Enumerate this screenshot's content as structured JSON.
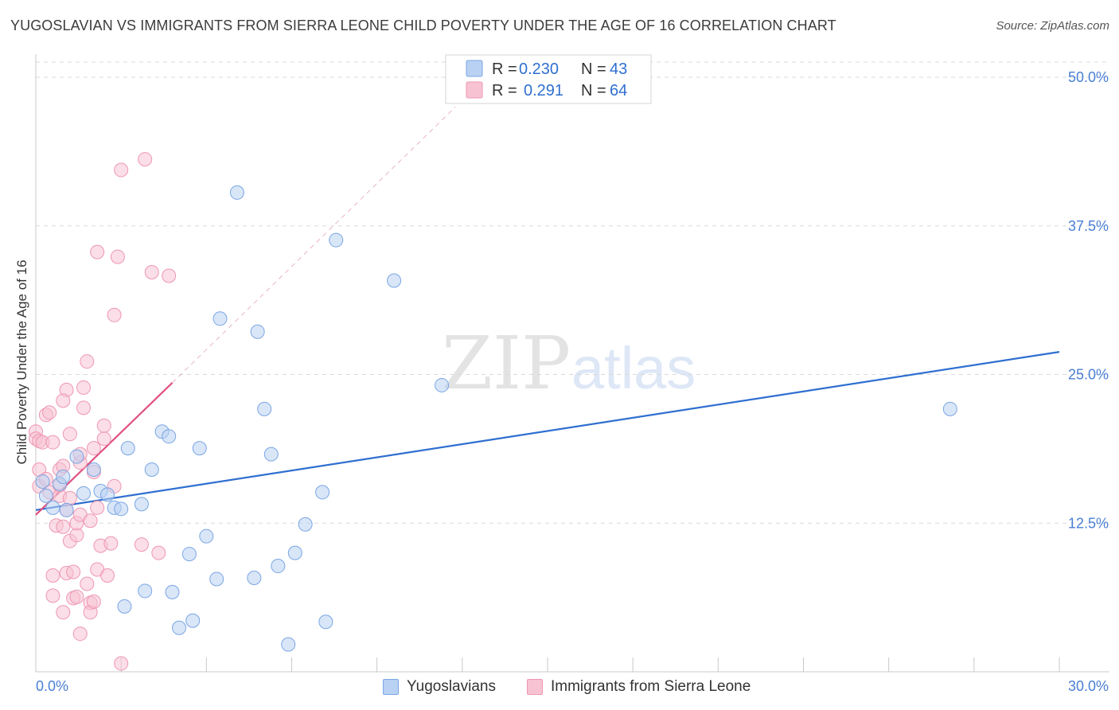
{
  "title": "YUGOSLAVIAN VS IMMIGRANTS FROM SIERRA LEONE CHILD POVERTY UNDER THE AGE OF 16 CORRELATION CHART",
  "source": "Source: ZipAtlas.com",
  "watermark": {
    "zip": "ZIP",
    "atlas": "atlas"
  },
  "colors": {
    "blue_fill": "#b9d1f3",
    "blue_stroke": "#7aa6e3",
    "blue_line": "#2f6fd0",
    "pink_fill": "#f7c3d3",
    "pink_stroke": "#ee97b3",
    "pink_line": "#e0507f",
    "axis_label": "#4a7fd4",
    "grid": "#d9d9d9"
  },
  "legend": [
    {
      "r_label": "R = ",
      "r_value": "0.230",
      "n_label": "N = ",
      "n_value": "43"
    },
    {
      "r_label": "R = ",
      "r_value": "0.291",
      "n_label": "N = ",
      "n_value": "64"
    }
  ],
  "bottom_legend": [
    "Yugoslavians",
    "Immigrants from Sierra Leone"
  ],
  "chart_data": {
    "type": "scatter",
    "title": "YUGOSLAVIAN VS IMMIGRANTS FROM SIERRA LEONE CHILD POVERTY UNDER THE AGE OF 16 CORRELATION CHART",
    "xlabel": "",
    "ylabel": "Child Poverty Under the Age of 16",
    "xlim": [
      0,
      30
    ],
    "ylim": [
      0,
      50
    ],
    "x_tick_labels": [
      "0.0%",
      "30.0%"
    ],
    "y_ticks": [
      12.5,
      25.0,
      37.5,
      50.0
    ],
    "y_tick_labels": [
      "12.5%",
      "25.0%",
      "37.5%",
      "50.0%"
    ],
    "series": [
      {
        "name": "Yugoslavians",
        "color": "#b9d1f3",
        "R": 0.23,
        "N": 43,
        "trend": {
          "x": [
            0,
            30
          ],
          "y": [
            13.6,
            26.9
          ],
          "extended": false
        },
        "points": [
          [
            0.2,
            16.0
          ],
          [
            0.3,
            14.8
          ],
          [
            0.5,
            13.8
          ],
          [
            0.7,
            15.8
          ],
          [
            0.8,
            16.4
          ],
          [
            0.9,
            13.6
          ],
          [
            1.2,
            18.1
          ],
          [
            1.4,
            15.0
          ],
          [
            1.7,
            17.0
          ],
          [
            1.9,
            15.2
          ],
          [
            2.1,
            14.9
          ],
          [
            2.3,
            13.8
          ],
          [
            2.5,
            13.7
          ],
          [
            2.6,
            5.5
          ],
          [
            2.7,
            18.8
          ],
          [
            3.1,
            14.1
          ],
          [
            3.2,
            6.8
          ],
          [
            3.4,
            17.0
          ],
          [
            3.7,
            20.2
          ],
          [
            3.9,
            19.8
          ],
          [
            4.0,
            6.7
          ],
          [
            4.2,
            3.7
          ],
          [
            4.5,
            9.9
          ],
          [
            4.6,
            4.3
          ],
          [
            4.8,
            18.8
          ],
          [
            5.0,
            11.4
          ],
          [
            5.3,
            7.8
          ],
          [
            5.4,
            29.7
          ],
          [
            5.9,
            40.3
          ],
          [
            6.4,
            7.9
          ],
          [
            6.5,
            28.6
          ],
          [
            6.7,
            22.1
          ],
          [
            6.9,
            18.3
          ],
          [
            7.1,
            8.9
          ],
          [
            7.4,
            2.3
          ],
          [
            7.6,
            10.0
          ],
          [
            7.9,
            12.4
          ],
          [
            8.4,
            15.1
          ],
          [
            8.5,
            4.2
          ],
          [
            8.8,
            36.3
          ],
          [
            10.5,
            32.9
          ],
          [
            11.9,
            24.1
          ],
          [
            26.8,
            22.1
          ]
        ]
      },
      {
        "name": "Immigrants from Sierra Leone",
        "color": "#f7c3d3",
        "R": 0.291,
        "N": 64,
        "trend": {
          "x": [
            0,
            4.0
          ],
          "y": [
            13.2,
            24.3
          ],
          "extended_to": [
            12.3,
            47.5
          ]
        },
        "points": [
          [
            0.0,
            20.2
          ],
          [
            0.0,
            19.6
          ],
          [
            0.1,
            19.4
          ],
          [
            0.1,
            17.0
          ],
          [
            0.1,
            15.6
          ],
          [
            0.2,
            19.3
          ],
          [
            0.3,
            21.6
          ],
          [
            0.3,
            16.2
          ],
          [
            0.4,
            21.8
          ],
          [
            0.4,
            15.1
          ],
          [
            0.5,
            19.3
          ],
          [
            0.5,
            6.4
          ],
          [
            0.5,
            8.1
          ],
          [
            0.6,
            12.3
          ],
          [
            0.7,
            17.0
          ],
          [
            0.7,
            14.8
          ],
          [
            0.7,
            15.7
          ],
          [
            0.8,
            17.3
          ],
          [
            0.8,
            12.2
          ],
          [
            0.8,
            5.0
          ],
          [
            0.9,
            8.3
          ],
          [
            0.9,
            23.7
          ],
          [
            0.9,
            13.6
          ],
          [
            0.8,
            22.8
          ],
          [
            1.0,
            20.0
          ],
          [
            1.0,
            14.6
          ],
          [
            1.0,
            11.0
          ],
          [
            1.1,
            8.4
          ],
          [
            1.1,
            6.2
          ],
          [
            1.2,
            11.5
          ],
          [
            1.2,
            6.3
          ],
          [
            1.2,
            12.5
          ],
          [
            1.3,
            3.2
          ],
          [
            1.3,
            17.6
          ],
          [
            1.3,
            18.3
          ],
          [
            1.3,
            13.2
          ],
          [
            1.4,
            23.9
          ],
          [
            1.4,
            22.2
          ],
          [
            1.5,
            26.1
          ],
          [
            1.5,
            7.4
          ],
          [
            1.6,
            5.8
          ],
          [
            1.6,
            5.0
          ],
          [
            1.6,
            12.7
          ],
          [
            1.7,
            18.8
          ],
          [
            1.7,
            16.8
          ],
          [
            1.8,
            13.8
          ],
          [
            1.8,
            8.6
          ],
          [
            1.8,
            35.3
          ],
          [
            1.9,
            10.6
          ],
          [
            2.0,
            19.6
          ],
          [
            2.0,
            20.7
          ],
          [
            2.1,
            8.1
          ],
          [
            2.2,
            10.8
          ],
          [
            2.3,
            15.6
          ],
          [
            2.3,
            30.0
          ],
          [
            2.4,
            34.9
          ],
          [
            2.5,
            42.2
          ],
          [
            2.5,
            0.7
          ],
          [
            3.1,
            10.7
          ],
          [
            3.2,
            43.1
          ],
          [
            3.4,
            33.6
          ],
          [
            3.6,
            10.0
          ],
          [
            3.9,
            33.3
          ],
          [
            1.7,
            5.9
          ]
        ]
      }
    ]
  }
}
